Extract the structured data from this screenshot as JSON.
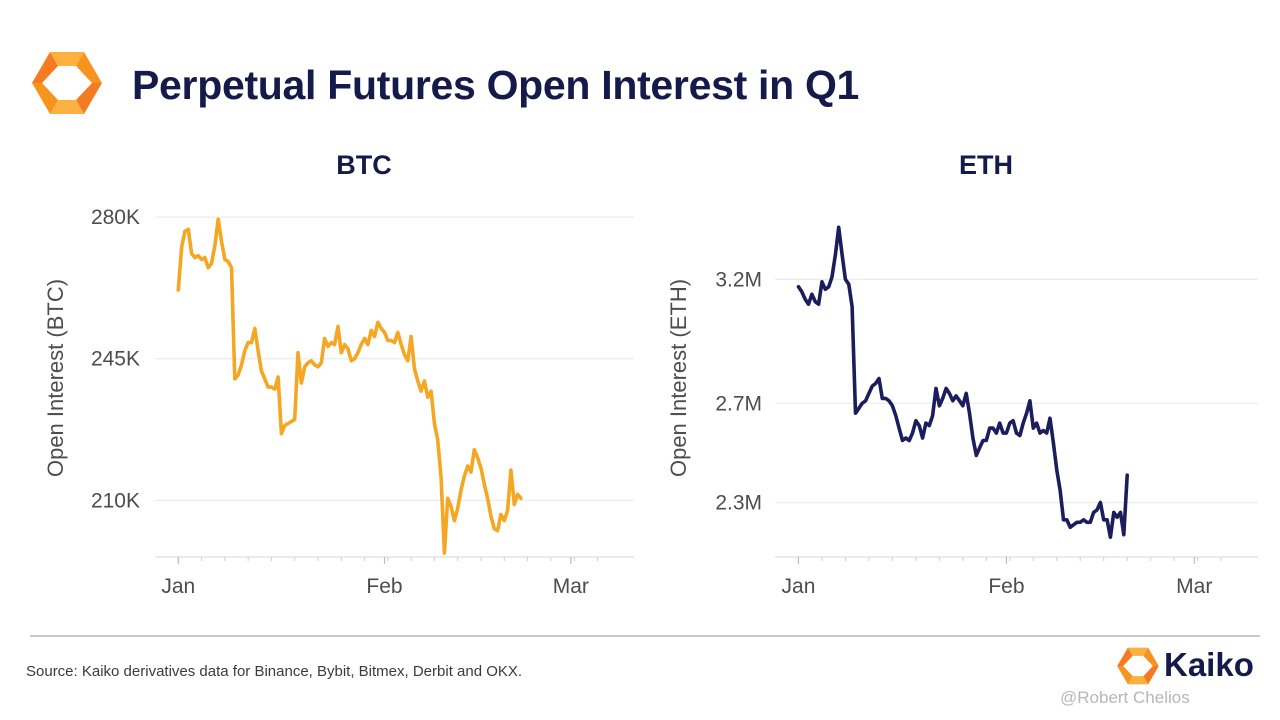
{
  "header": {
    "title": "Perpetual Futures Open Interest in Q1"
  },
  "colors": {
    "title": "#141a4a",
    "btc_line": "#f5a623",
    "eth_line": "#1b1d5c",
    "brand_orange": "#f7941d",
    "grid": "#ececec"
  },
  "chart_data": [
    {
      "type": "line",
      "title": "BTC",
      "xlabel": "",
      "ylabel": "Open Interest (BTC)",
      "x_ticks": [
        {
          "label": "Jan",
          "day": 0
        },
        {
          "label": "Feb",
          "day": 31
        },
        {
          "label": "Mar",
          "day": 59
        }
      ],
      "y_ticks": [
        {
          "label": "210K",
          "value": 210000
        },
        {
          "label": "245K",
          "value": 245000
        },
        {
          "label": "280K",
          "value": 280000
        }
      ],
      "xlim": [
        -3.5,
        68.5
      ],
      "ylim": [
        196000,
        283000
      ],
      "grid": true,
      "series": [
        {
          "name": "BTC",
          "color": "#f5a623",
          "points": [
            [
              0,
              262000
            ],
            [
              0.5,
              272500
            ],
            [
              1,
              276500
            ],
            [
              1.5,
              277000
            ],
            [
              2,
              271000
            ],
            [
              2.5,
              270000
            ],
            [
              3,
              270500
            ],
            [
              3.5,
              269500
            ],
            [
              4,
              270000
            ],
            [
              4.5,
              267500
            ],
            [
              5,
              268500
            ],
            [
              5.5,
              273000
            ],
            [
              6,
              279500
            ],
            [
              6.5,
              274000
            ],
            [
              7,
              269500
            ],
            [
              7.5,
              269000
            ],
            [
              8,
              267500
            ],
            [
              8.5,
              240000
            ],
            [
              9,
              241000
            ],
            [
              9.5,
              243500
            ],
            [
              10,
              247000
            ],
            [
              10.5,
              249000
            ],
            [
              11,
              249000
            ],
            [
              11.5,
              252500
            ],
            [
              12,
              247000
            ],
            [
              12.5,
              242000
            ],
            [
              13,
              240000
            ],
            [
              13.5,
              238000
            ],
            [
              14,
              238000
            ],
            [
              14.5,
              237500
            ],
            [
              15,
              240500
            ],
            [
              15.5,
              226500
            ],
            [
              16,
              228500
            ],
            [
              16.5,
              229000
            ],
            [
              17,
              229500
            ],
            [
              17.5,
              230000
            ],
            [
              18,
              246500
            ],
            [
              18.5,
              239000
            ],
            [
              19,
              243000
            ],
            [
              19.5,
              244000
            ],
            [
              20,
              244500
            ],
            [
              20.5,
              243500
            ],
            [
              21,
              243000
            ],
            [
              21.5,
              244000
            ],
            [
              22,
              250000
            ],
            [
              22.5,
              248000
            ],
            [
              23,
              249000
            ],
            [
              23.5,
              248500
            ],
            [
              24,
              253000
            ],
            [
              24.5,
              246500
            ],
            [
              25,
              248500
            ],
            [
              25.5,
              247500
            ],
            [
              26,
              244500
            ],
            [
              26.5,
              245000
            ],
            [
              27,
              246500
            ],
            [
              27.5,
              248500
            ],
            [
              28,
              250000
            ],
            [
              28.5,
              248500
            ],
            [
              29,
              252000
            ],
            [
              29.5,
              250500
            ],
            [
              30,
              254000
            ],
            [
              30.5,
              252500
            ],
            [
              31,
              251500
            ],
            [
              31.5,
              249500
            ],
            [
              32,
              249500
            ],
            [
              32.5,
              249000
            ],
            [
              33,
              251500
            ],
            [
              33.5,
              248500
            ],
            [
              34,
              246000
            ],
            [
              34.5,
              244500
            ],
            [
              35,
              250500
            ],
            [
              35.5,
              242500
            ],
            [
              36,
              239500
            ],
            [
              36.5,
              237000
            ],
            [
              37,
              239500
            ],
            [
              37.5,
              235500
            ],
            [
              38,
              237000
            ],
            [
              38.5,
              229000
            ],
            [
              39,
              225000
            ],
            [
              39.5,
              215500
            ],
            [
              40,
              197000
            ],
            [
              40.5,
              210500
            ],
            [
              41,
              208500
            ],
            [
              41.5,
              205000
            ],
            [
              42,
              208000
            ],
            [
              42.5,
              212500
            ],
            [
              43,
              216000
            ],
            [
              43.5,
              218500
            ],
            [
              44,
              217000
            ],
            [
              44.5,
              222500
            ],
            [
              45,
              220500
            ],
            [
              45.5,
              218000
            ],
            [
              46,
              214000
            ],
            [
              46.5,
              210500
            ],
            [
              47,
              206000
            ],
            [
              47.5,
              203000
            ],
            [
              48,
              202500
            ],
            [
              48.5,
              206500
            ],
            [
              49,
              205000
            ],
            [
              49.5,
              207500
            ],
            [
              50,
              217500
            ],
            [
              50.5,
              209000
            ],
            [
              51,
              211500
            ],
            [
              51.5,
              210500
            ]
          ]
        }
      ]
    },
    {
      "type": "line",
      "title": "ETH",
      "xlabel": "",
      "ylabel": "Open Interest (ETH)",
      "x_ticks": [
        {
          "label": "Jan",
          "day": 0
        },
        {
          "label": "Feb",
          "day": 31
        },
        {
          "label": "Mar",
          "day": 59
        }
      ],
      "y_ticks": [
        {
          "label": "2.3M",
          "value": 2300000
        },
        {
          "label": "2.7M",
          "value": 2700000
        },
        {
          "label": "3.2M",
          "value": 3200000
        }
      ],
      "xlim": [
        -3.5,
        68.5
      ],
      "ylim": [
        2080000,
        3500000
      ],
      "grid": true,
      "series": [
        {
          "name": "ETH",
          "color": "#1b1d5c",
          "points": [
            [
              0,
              3170000
            ],
            [
              0.5,
              3150000
            ],
            [
              1,
              3120000
            ],
            [
              1.5,
              3100000
            ],
            [
              2,
              3140000
            ],
            [
              2.5,
              3110000
            ],
            [
              3,
              3100000
            ],
            [
              3.5,
              3190000
            ],
            [
              4,
              3160000
            ],
            [
              4.5,
              3170000
            ],
            [
              5,
              3210000
            ],
            [
              5.5,
              3300000
            ],
            [
              6,
              3410000
            ],
            [
              6.5,
              3300000
            ],
            [
              7,
              3200000
            ],
            [
              7.5,
              3180000
            ],
            [
              8,
              3090000
            ],
            [
              8.5,
              2660000
            ],
            [
              9,
              2680000
            ],
            [
              9.5,
              2700000
            ],
            [
              10,
              2710000
            ],
            [
              10.5,
              2740000
            ],
            [
              11,
              2770000
            ],
            [
              11.5,
              2780000
            ],
            [
              12,
              2800000
            ],
            [
              12.5,
              2720000
            ],
            [
              13,
              2720000
            ],
            [
              13.5,
              2710000
            ],
            [
              14,
              2690000
            ],
            [
              14.5,
              2650000
            ],
            [
              15,
              2600000
            ],
            [
              15.5,
              2550000
            ],
            [
              16,
              2560000
            ],
            [
              16.5,
              2550000
            ],
            [
              17,
              2580000
            ],
            [
              17.5,
              2630000
            ],
            [
              18,
              2610000
            ],
            [
              18.5,
              2560000
            ],
            [
              19,
              2620000
            ],
            [
              19.5,
              2610000
            ],
            [
              20,
              2650000
            ],
            [
              20.5,
              2760000
            ],
            [
              21,
              2690000
            ],
            [
              21.5,
              2720000
            ],
            [
              22,
              2760000
            ],
            [
              22.5,
              2740000
            ],
            [
              23,
              2710000
            ],
            [
              23.5,
              2730000
            ],
            [
              24,
              2710000
            ],
            [
              24.5,
              2690000
            ],
            [
              25,
              2740000
            ],
            [
              25.5,
              2660000
            ],
            [
              26,
              2560000
            ],
            [
              26.5,
              2490000
            ],
            [
              27,
              2520000
            ],
            [
              27.5,
              2550000
            ],
            [
              28,
              2550000
            ],
            [
              28.5,
              2600000
            ],
            [
              29,
              2600000
            ],
            [
              29.5,
              2580000
            ],
            [
              30,
              2620000
            ],
            [
              30.5,
              2580000
            ],
            [
              31,
              2580000
            ],
            [
              31.5,
              2620000
            ],
            [
              32,
              2630000
            ],
            [
              32.5,
              2580000
            ],
            [
              33,
              2570000
            ],
            [
              33.5,
              2620000
            ],
            [
              34,
              2660000
            ],
            [
              34.5,
              2710000
            ],
            [
              35,
              2600000
            ],
            [
              35.5,
              2620000
            ],
            [
              36,
              2580000
            ],
            [
              36.5,
              2590000
            ],
            [
              37,
              2580000
            ],
            [
              37.5,
              2640000
            ],
            [
              38,
              2540000
            ],
            [
              38.5,
              2430000
            ],
            [
              39,
              2350000
            ],
            [
              39.5,
              2230000
            ],
            [
              40,
              2230000
            ],
            [
              40.5,
              2200000
            ],
            [
              41,
              2210000
            ],
            [
              41.5,
              2220000
            ],
            [
              42,
              2220000
            ],
            [
              42.5,
              2230000
            ],
            [
              43,
              2220000
            ],
            [
              43.5,
              2220000
            ],
            [
              44,
              2260000
            ],
            [
              44.5,
              2270000
            ],
            [
              45,
              2300000
            ],
            [
              45.5,
              2230000
            ],
            [
              46,
              2230000
            ],
            [
              46.5,
              2160000
            ],
            [
              47,
              2260000
            ],
            [
              47.5,
              2240000
            ],
            [
              48,
              2260000
            ],
            [
              48.5,
              2170000
            ],
            [
              49,
              2410000
            ]
          ]
        }
      ]
    }
  ],
  "footer": {
    "source": "Source: Kaiko derivatives data for Binance, Bybit, Bitmex, Derbit and OKX.",
    "brand_name": "Kaiko",
    "watermark": "@Robert Chelios"
  }
}
